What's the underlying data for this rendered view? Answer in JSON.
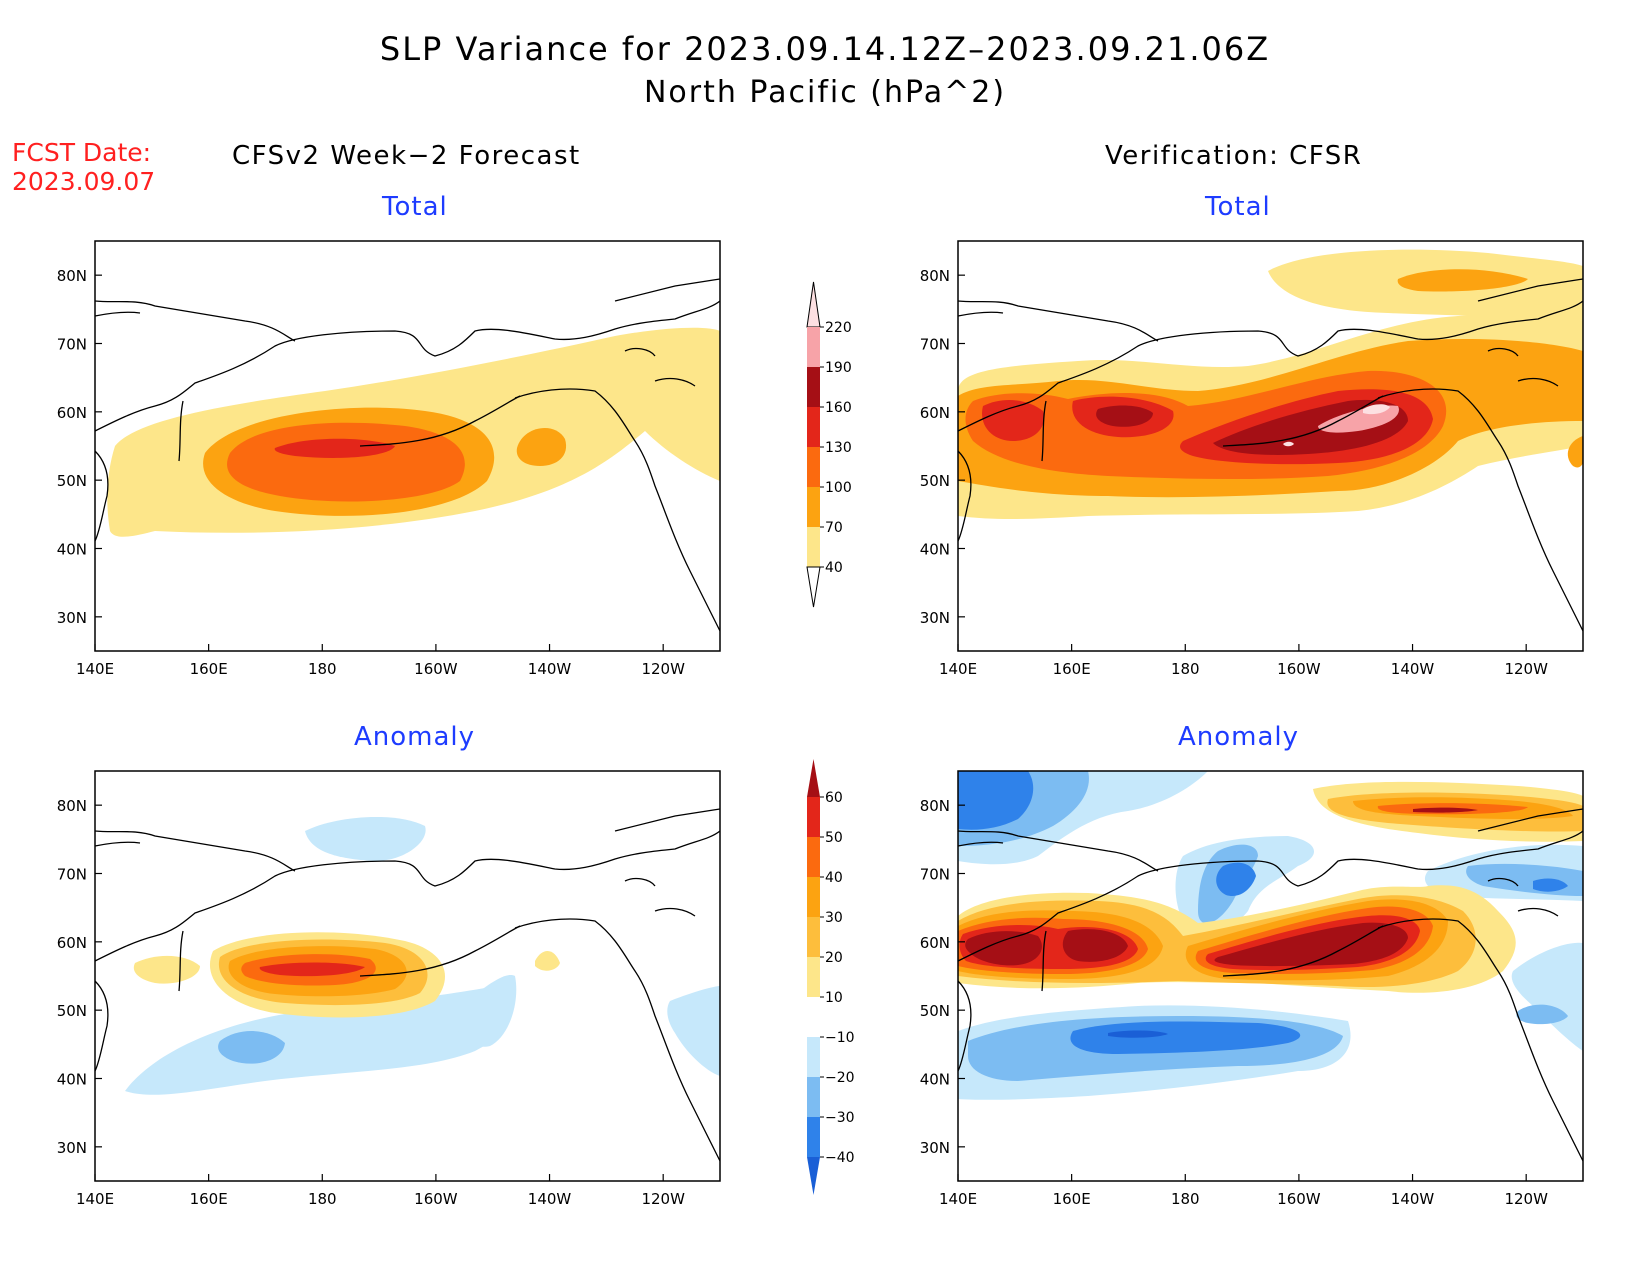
{
  "title": {
    "line1": "SLP Variance for 2023.09.14.12Z–2023.09.21.06Z",
    "line2": "North Pacific (hPa^2)"
  },
  "fcst_date": {
    "label": "FCST Date:",
    "value": "2023.09.07"
  },
  "columns": {
    "left": "CFSv2 Week−2 Forecast",
    "right": "Verification: CFSR"
  },
  "subtitles": {
    "total": "Total",
    "anomaly": "Anomaly"
  },
  "axes": {
    "lon_ticks": [
      {
        "lon": 140,
        "label": "140E"
      },
      {
        "lon": 160,
        "label": "160E"
      },
      {
        "lon": 180,
        "label": "180"
      },
      {
        "lon": 200,
        "label": "160W"
      },
      {
        "lon": 220,
        "label": "140W"
      },
      {
        "lon": 240,
        "label": "120W"
      }
    ],
    "lat_ticks": [
      {
        "lat": 30,
        "label": "30N"
      },
      {
        "lat": 40,
        "label": "40N"
      },
      {
        "lat": 50,
        "label": "50N"
      },
      {
        "lat": 60,
        "label": "60N"
      },
      {
        "lat": 70,
        "label": "70N"
      },
      {
        "lat": 80,
        "label": "80N"
      }
    ],
    "lon_range": [
      140,
      250
    ],
    "lat_range": [
      25,
      85
    ]
  },
  "colorbars": {
    "total": {
      "labels": [
        "40",
        "70",
        "100",
        "130",
        "160",
        "190",
        "220"
      ],
      "colors": [
        "#fde68a",
        "#fca311",
        "#fb6a0f",
        "#e3261a",
        "#a50f15",
        "#f7a3a8",
        "#fde0e2"
      ]
    },
    "anomaly": {
      "labels": [
        "−40",
        "−30",
        "−20",
        "−10",
        "10",
        "20",
        "30",
        "40",
        "50",
        "60"
      ],
      "colors": [
        "#1a5fd6",
        "#2f82ea",
        "#7cbcf2",
        "#c6e8fb",
        "#ffffff",
        "#fde68a",
        "#fdbe3c",
        "#fca311",
        "#fb6a0f",
        "#e3261a",
        "#a50f15"
      ]
    }
  }
}
